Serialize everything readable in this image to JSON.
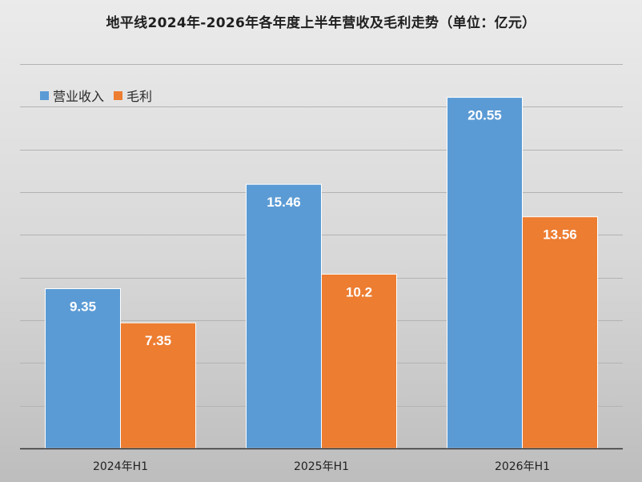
{
  "chart_data": {
    "type": "bar",
    "title": "地平线2024年-2026年各年度上半年营收及毛利走势（单位：亿元）",
    "categories": [
      "2024年H1",
      "2025年H1",
      "2026年H1"
    ],
    "series": [
      {
        "name": "营业收入",
        "color": "#5b9bd5",
        "values": [
          9.35,
          15.46,
          20.55
        ]
      },
      {
        "name": "毛利",
        "color": "#ed7d31",
        "values": [
          7.35,
          10.2,
          13.56
        ]
      }
    ],
    "ylim": [
      0,
      22.5
    ],
    "grid": true,
    "legend_position": "top-left",
    "xlabel": "",
    "ylabel": ""
  }
}
